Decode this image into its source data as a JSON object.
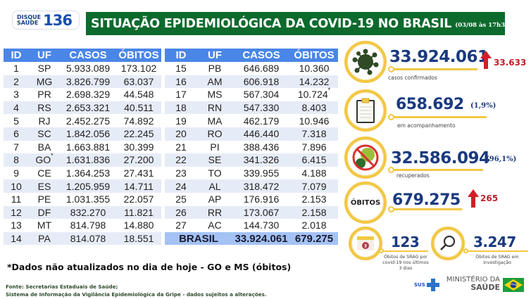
{
  "header": {
    "disque_line1": "DISQUE",
    "disque_line2": "SAÚDE",
    "disque_number": "136",
    "title": "SITUAÇÃO EPIDEMIOLÓGICA DA COVID-19 NO BRASIL",
    "date": "(03/08 às 17h30)",
    "colors": {
      "title_bg": "#0c6a2c",
      "table_header": "#4a86e8",
      "total_row": "#a4c2f4",
      "accent_ring": "#f2c744",
      "number_blue": "#1a3a7f",
      "delta_red": "#c0202a"
    }
  },
  "table": {
    "columns": [
      "ID",
      "UF",
      "CASOS",
      "ÓBITOS"
    ],
    "left_rows": [
      {
        "id": "1",
        "uf": "SP",
        "casos": "5.933.089",
        "obitos": "173.102"
      },
      {
        "id": "2",
        "uf": "MG",
        "casos": "3.826.799",
        "obitos": "63.037"
      },
      {
        "id": "3",
        "uf": "PR",
        "casos": "2.698.329",
        "obitos": "44.548"
      },
      {
        "id": "4",
        "uf": "RS",
        "casos": "2.653.321",
        "obitos": "40.511"
      },
      {
        "id": "5",
        "uf": "RJ",
        "casos": "2.452.275",
        "obitos": "74.892"
      },
      {
        "id": "6",
        "uf": "SC",
        "casos": "1.842.056",
        "obitos": "22.245"
      },
      {
        "id": "7",
        "uf": "BA",
        "casos": "1.663.881",
        "obitos": "30.399"
      },
      {
        "id": "8",
        "uf": "GO",
        "uf_mark": "*",
        "casos": "1.631.836",
        "obitos": "27.200"
      },
      {
        "id": "9",
        "uf": "CE",
        "casos": "1.364.253",
        "obitos": "27.431"
      },
      {
        "id": "10",
        "uf": "ES",
        "casos": "1.205.959",
        "obitos": "14.711"
      },
      {
        "id": "11",
        "uf": "PE",
        "casos": "1.031.355",
        "obitos": "22.057"
      },
      {
        "id": "12",
        "uf": "DF",
        "casos": "832.270",
        "obitos": "11.821"
      },
      {
        "id": "13",
        "uf": "MT",
        "casos": "814.798",
        "obitos": "14.880"
      },
      {
        "id": "14",
        "uf": "PA",
        "casos": "814.078",
        "obitos": "18.551"
      }
    ],
    "right_rows": [
      {
        "id": "15",
        "uf": "PB",
        "casos": "646.689",
        "obitos": "10.360"
      },
      {
        "id": "16",
        "uf": "AM",
        "casos": "606.918",
        "obitos": "14.232"
      },
      {
        "id": "17",
        "uf": "MS",
        "casos": "567.304",
        "obitos": "10.724",
        "obitos_mark": "*"
      },
      {
        "id": "18",
        "uf": "RN",
        "casos": "547.330",
        "obitos": "8.403"
      },
      {
        "id": "19",
        "uf": "MA",
        "casos": "462.179",
        "obitos": "10.946"
      },
      {
        "id": "20",
        "uf": "RO",
        "casos": "446.440",
        "obitos": "7.318"
      },
      {
        "id": "21",
        "uf": "PI",
        "casos": "388.436",
        "obitos": "7.896"
      },
      {
        "id": "22",
        "uf": "SE",
        "casos": "341.326",
        "obitos": "6.415"
      },
      {
        "id": "23",
        "uf": "TO",
        "casos": "339.955",
        "obitos": "4.188"
      },
      {
        "id": "24",
        "uf": "AL",
        "casos": "318.472",
        "obitos": "7.079"
      },
      {
        "id": "25",
        "uf": "AP",
        "casos": "176.916",
        "obitos": "2.153"
      },
      {
        "id": "26",
        "uf": "RR",
        "casos": "173.067",
        "obitos": "2.158"
      },
      {
        "id": "27",
        "uf": "AC",
        "casos": "144.730",
        "obitos": "2.018"
      }
    ],
    "total": {
      "label": "BRASIL",
      "casos": "33.924.061",
      "obitos": "679.275"
    }
  },
  "stats": {
    "confirmados": {
      "value": "33.924.061",
      "delta": "33.633",
      "label": "casos confirmados",
      "icon": "virus-icon"
    },
    "acompanhamento": {
      "value": "658.692",
      "pct": "(1,9%)",
      "label": "em acompanhamento",
      "icon": "clipboard-icon"
    },
    "recuperados": {
      "value": "32.586.094",
      "pct": "(96,1%)",
      "label": "recuperados",
      "icon": "no-virus-icon"
    },
    "obitos": {
      "badge": "ÓBITOS",
      "value": "679.275",
      "delta": "265"
    },
    "srag_3dias": {
      "value": "123",
      "label_l1": "Óbitos de SRAG por",
      "label_l2": "covid-19 nos últimos",
      "label_l3": "3 dias",
      "icon": "calendar-icon",
      "calendar_num": "3"
    },
    "srag_investigacao": {
      "value": "3.247",
      "label_l1": "Óbitos de SRAG em",
      "label_l2": "investigação",
      "icon": "magnifier-icon"
    }
  },
  "footer": {
    "note": "*Dados não atualizados no dia de hoje - GO e MS (óbitos)",
    "source_l1": "Fonte: Secretarias Estaduais de Saúde;",
    "source_l2": "Sistema de Informação da Vigilância Epidemiológica da Gripe - dados sujeitos a alterações.",
    "sus": "SUS",
    "ministerio_l1": "MINISTÉRIO DA",
    "ministerio_l2": "SAÚDE"
  }
}
